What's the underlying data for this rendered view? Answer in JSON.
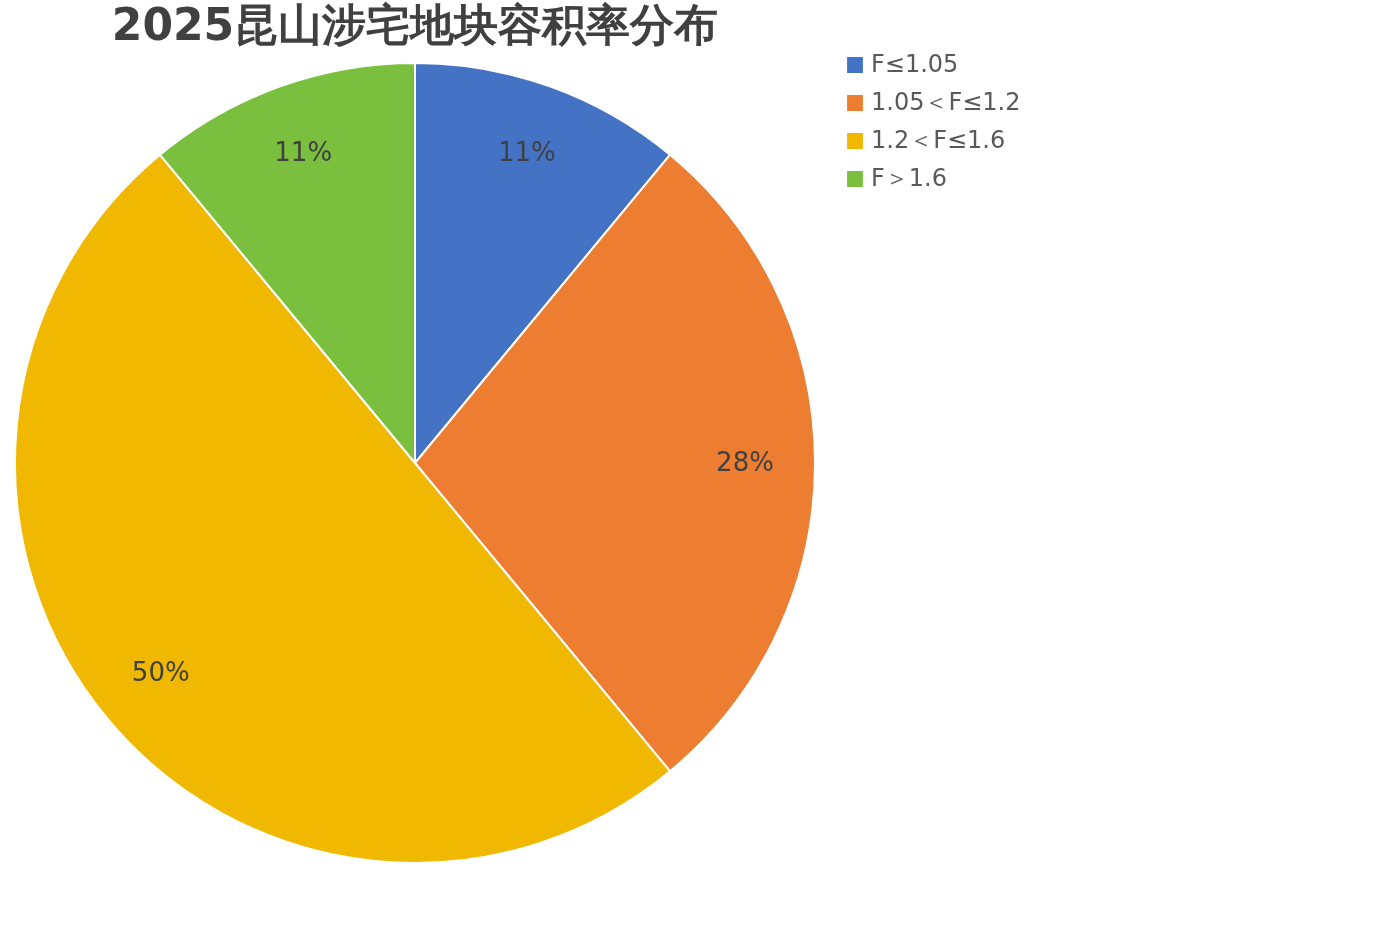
{
  "chart_data": {
    "type": "pie",
    "title": "2025昆山涉宅地块容积率分布",
    "categories": [
      "F≤1.05",
      "1.05＜F≤1.2",
      "1.2＜F≤1.6",
      "F＞1.6"
    ],
    "values": [
      11,
      28,
      50,
      11
    ],
    "colors": [
      "#4472c4",
      "#ed7d31",
      "#f0b800",
      "#7bbf3f"
    ],
    "value_labels": [
      "11%",
      "28%",
      "50%",
      "11%"
    ],
    "legend": "right"
  }
}
